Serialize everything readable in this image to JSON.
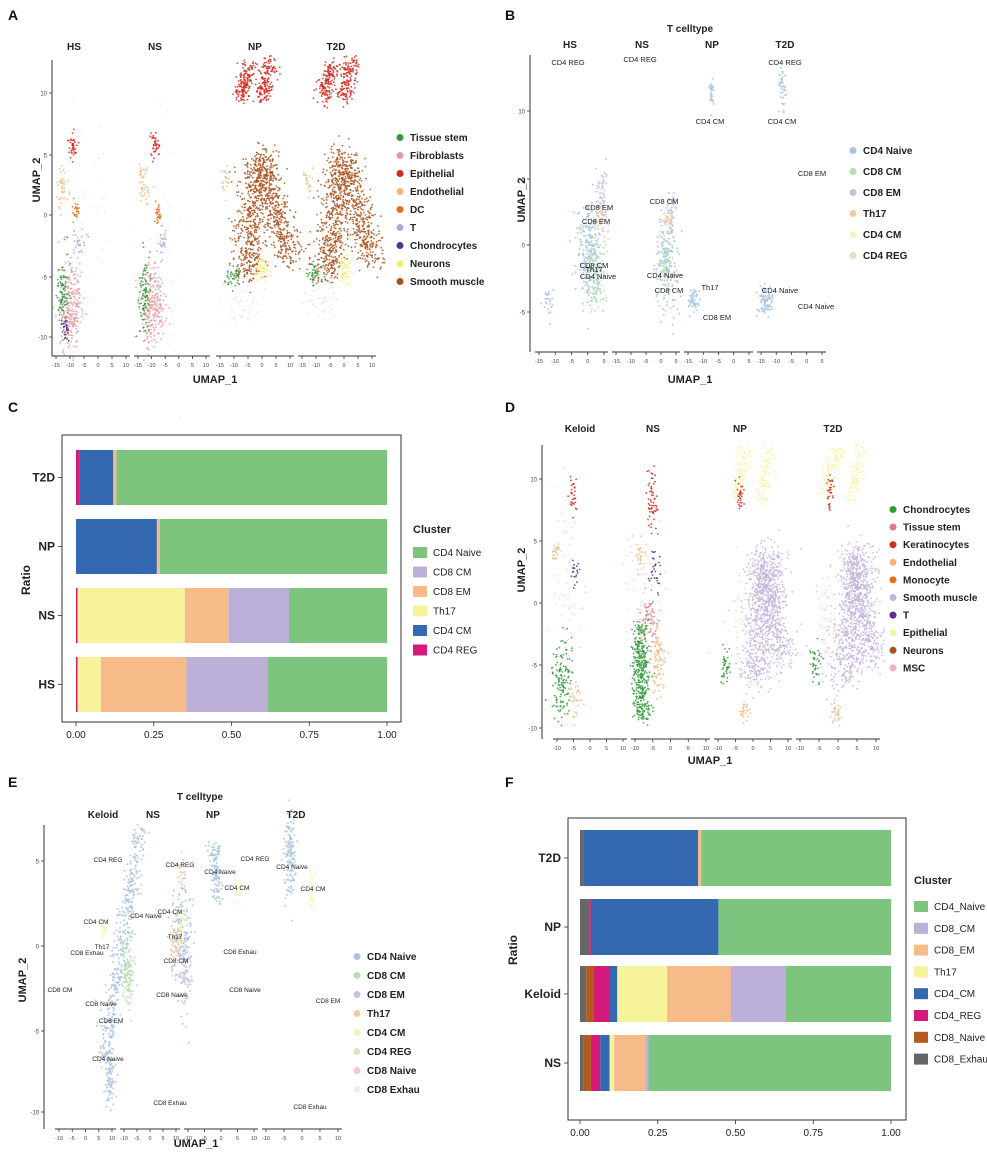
{
  "panel_letters": [
    "A",
    "B",
    "C",
    "D",
    "E",
    "F"
  ],
  "chart_data": [
    {
      "panel": "A",
      "type": "scatter",
      "facets": [
        "HS",
        "NS",
        "NP",
        "T2D"
      ],
      "xlabel": "UMAP_1",
      "ylabel": "UMAP_2",
      "x_ticks": [
        "-15",
        "-10",
        "-5",
        "0",
        "5",
        "10"
      ],
      "y_ticks": [
        "10",
        "5",
        "0",
        "-5",
        "-10"
      ],
      "legend": [
        {
          "label": "Tissue stem",
          "color": "#2f9b39"
        },
        {
          "label": "Fibroblasts",
          "color": "#e89aa0"
        },
        {
          "label": "Epithelial",
          "color": "#d6281e"
        },
        {
          "label": "Endothelial",
          "color": "#f2b57a"
        },
        {
          "label": "DC",
          "color": "#e3701b"
        },
        {
          "label": "T",
          "color": "#b4a8d4"
        },
        {
          "label": "Chondrocytes",
          "color": "#5a2f8f"
        },
        {
          "label": "Neurons",
          "color": "#f3ef6e"
        },
        {
          "label": "Smooth muscle",
          "color": "#a9521c"
        }
      ]
    },
    {
      "panel": "B",
      "type": "scatter",
      "title": "T celltype",
      "facets": [
        "HS",
        "NS",
        "NP",
        "T2D"
      ],
      "xlabel": "UMAP_1",
      "ylabel": "UMAP_2",
      "x_ticks": [
        "-15",
        "-10",
        "-5",
        "0",
        "5"
      ],
      "y_ticks": [
        "10",
        "5",
        "0",
        "-5"
      ],
      "annotations": [
        "CD4 REG",
        "CD4 REG",
        "CD4 REG",
        "CD4 CM",
        "CD4 CM",
        "CD8 EM",
        "CD8 EM",
        "CD8 EM",
        "Th17",
        "CD4 Naive",
        "CD8 CM",
        "CD4 Naive",
        "CD8 CM",
        "Th17",
        "CD4 Naive",
        "CD8 EM",
        "CD4 Naive",
        "CD8 CM"
      ],
      "legend": [
        {
          "label": "CD4 Naive",
          "color": "#a9c4e2"
        },
        {
          "label": "CD8 CM",
          "color": "#b8dfb0"
        },
        {
          "label": "CD8 EM",
          "color": "#cbbfe0"
        },
        {
          "label": "Th17",
          "color": "#f6c99e"
        },
        {
          "label": "CD4 CM",
          "color": "#f7f3b8"
        },
        {
          "label": "CD4 REG",
          "color": "#d8e6c6"
        }
      ]
    },
    {
      "panel": "C",
      "type": "bar",
      "orientation": "horizontal-stacked",
      "categories": [
        "T2D",
        "NP",
        "NS",
        "HS"
      ],
      "ylabel": "Ratio",
      "x_ticks": [
        "0.00",
        "0.25",
        "0.50",
        "0.75",
        "1.00"
      ],
      "legend_title": "Cluster",
      "series": [
        {
          "name": "CD4 REG",
          "color": "#d4197b",
          "values": [
            0.01,
            0.0,
            0.005,
            0.005
          ]
        },
        {
          "name": "CD4 CM",
          "color": "#3468b0",
          "values": [
            0.11,
            0.26,
            0.0,
            0.0
          ]
        },
        {
          "name": "Th17",
          "color": "#f7f39a",
          "values": [
            0.0,
            0.0,
            0.345,
            0.075
          ]
        },
        {
          "name": "CD8 EM",
          "color": "#f6bb88",
          "values": [
            0.01,
            0.01,
            0.14,
            0.275
          ]
        },
        {
          "name": "CD8 CM",
          "color": "#bcb0d8",
          "values": [
            0.0,
            0.0,
            0.195,
            0.26
          ]
        },
        {
          "name": "CD4 Naive",
          "color": "#7dc47e",
          "values": [
            0.87,
            0.73,
            0.315,
            0.385
          ]
        }
      ],
      "legend_order": [
        "CD4 Naive",
        "CD8 CM",
        "CD8 EM",
        "Th17",
        "CD4 CM",
        "CD4 REG"
      ]
    },
    {
      "panel": "D",
      "type": "scatter",
      "facets": [
        "Keloid",
        "NS",
        "NP",
        "T2D"
      ],
      "xlabel": "UMAP_1",
      "ylabel": "UMAP_2",
      "x_ticks": [
        "-10",
        "-5",
        "0",
        "5",
        "10"
      ],
      "y_ticks": [
        "10",
        "5",
        "0",
        "-5",
        "-10"
      ],
      "legend": [
        {
          "label": "Chondrocytes",
          "color": "#2f9b39"
        },
        {
          "label": "Tissue stem",
          "color": "#e07a84"
        },
        {
          "label": "Keratinocytes",
          "color": "#d6281e"
        },
        {
          "label": "Endothelial",
          "color": "#f2b57a"
        },
        {
          "label": "Monocyte",
          "color": "#e3701b"
        },
        {
          "label": "Smooth muscle",
          "color": "#c2b4de"
        },
        {
          "label": "T",
          "color": "#5a2f8f"
        },
        {
          "label": "Epithelial",
          "color": "#f7f4a8"
        },
        {
          "label": "Neurons",
          "color": "#a9521c"
        },
        {
          "label": "MSC",
          "color": "#f2b3b8"
        }
      ]
    },
    {
      "panel": "E",
      "type": "scatter",
      "title": "T celltype",
      "facets": [
        "Keloid",
        "NS",
        "NP",
        "T2D"
      ],
      "xlabel": "UMAP_1",
      "ylabel": "UMAP_2",
      "x_ticks": [
        "-10",
        "-5",
        "0",
        "5",
        "10"
      ],
      "y_ticks": [
        "5",
        "0",
        "-5",
        "-10"
      ],
      "annotations": [
        "CD4 REG",
        "CD4 CM",
        "Th17",
        "CD8 Exhau",
        "CD8 CM",
        "CD8 Naive",
        "CD8 EM",
        "CD4 Naive",
        "CD8 Exhau",
        "CD4 Naive",
        "CD4 REG",
        "CD4 CM",
        "Th17",
        "CD8 CM",
        "CD8 Naive",
        "CD4 Naive",
        "CD4 REG",
        "CD4 CM",
        "CD8 Exhau",
        "CD8 Naive",
        "CD4 Naive",
        "CD4 CM",
        "CD8 EM",
        "CD8 Exhau"
      ],
      "legend": [
        {
          "label": "CD4 Naive",
          "color": "#a9c4e2"
        },
        {
          "label": "CD8 CM",
          "color": "#b8dfb0"
        },
        {
          "label": "CD8 EM",
          "color": "#cbbfe0"
        },
        {
          "label": "Th17",
          "color": "#f6c99e"
        },
        {
          "label": "CD4 CM",
          "color": "#f7f3b8"
        },
        {
          "label": "CD4 REG",
          "color": "#d8e6c6"
        },
        {
          "label": "CD8  Naive",
          "color": "#f2c8d6"
        },
        {
          "label": "CD8 Exhau",
          "color": "#eeeeee"
        }
      ]
    },
    {
      "panel": "F",
      "type": "bar",
      "orientation": "horizontal-stacked",
      "categories": [
        "T2D",
        "NP",
        "Keloid",
        "NS"
      ],
      "ylabel": "Ratio",
      "x_ticks": [
        "0.00",
        "0.25",
        "0.50",
        "0.75",
        "1.00"
      ],
      "legend_title": "Cluster",
      "series": [
        {
          "name": "CD8_Exhau",
          "color": "#666666",
          "values": [
            0.01,
            0.03,
            0.02,
            0.01
          ]
        },
        {
          "name": "CD8_Naive",
          "color": "#b35a1c",
          "values": [
            0.0,
            0.0,
            0.025,
            0.025
          ]
        },
        {
          "name": "CD4_REG",
          "color": "#d4197b",
          "values": [
            0.0,
            0.005,
            0.05,
            0.03
          ]
        },
        {
          "name": "CD4_CM",
          "color": "#3468b0",
          "values": [
            0.37,
            0.41,
            0.025,
            0.03
          ]
        },
        {
          "name": "Th17",
          "color": "#f7f39a",
          "values": [
            0.0,
            0.0,
            0.16,
            0.015
          ]
        },
        {
          "name": "CD8_EM",
          "color": "#f6bb88",
          "values": [
            0.01,
            0.0,
            0.205,
            0.1
          ]
        },
        {
          "name": "CD8_CM",
          "color": "#bcb0d8",
          "values": [
            0.0,
            0.0,
            0.175,
            0.01
          ]
        },
        {
          "name": "CD4_Naive",
          "color": "#7dc47e",
          "values": [
            0.61,
            0.555,
            0.34,
            0.78
          ]
        }
      ],
      "legend_order": [
        "CD4_Naive",
        "CD8_CM",
        "CD8_EM",
        "Th17",
        "CD4_CM",
        "CD4_REG",
        "CD8_Naive",
        "CD8_Exhau"
      ]
    }
  ]
}
